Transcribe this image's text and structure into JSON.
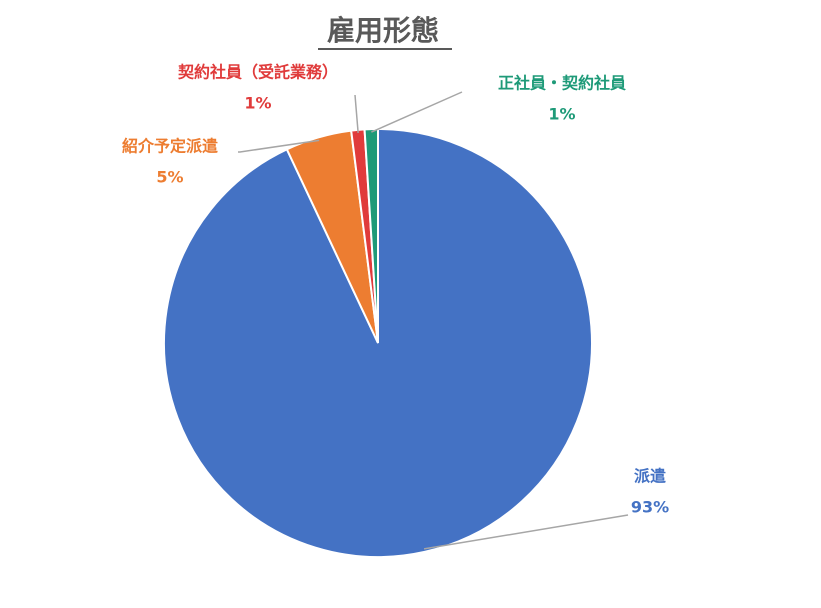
{
  "chart_data": {
    "type": "pie",
    "title": "雇用形態",
    "categories": [
      "派遣",
      "紹介予定派遣",
      "契約社員（受託業務）",
      "正社員・契約社員"
    ],
    "values": [
      93,
      5,
      1,
      1
    ],
    "value_labels": [
      "93%",
      "5%",
      "1%",
      "1%"
    ],
    "colors": [
      "#4472c4",
      "#ed7d31",
      "#e03b3b",
      "#1e9a78"
    ]
  }
}
